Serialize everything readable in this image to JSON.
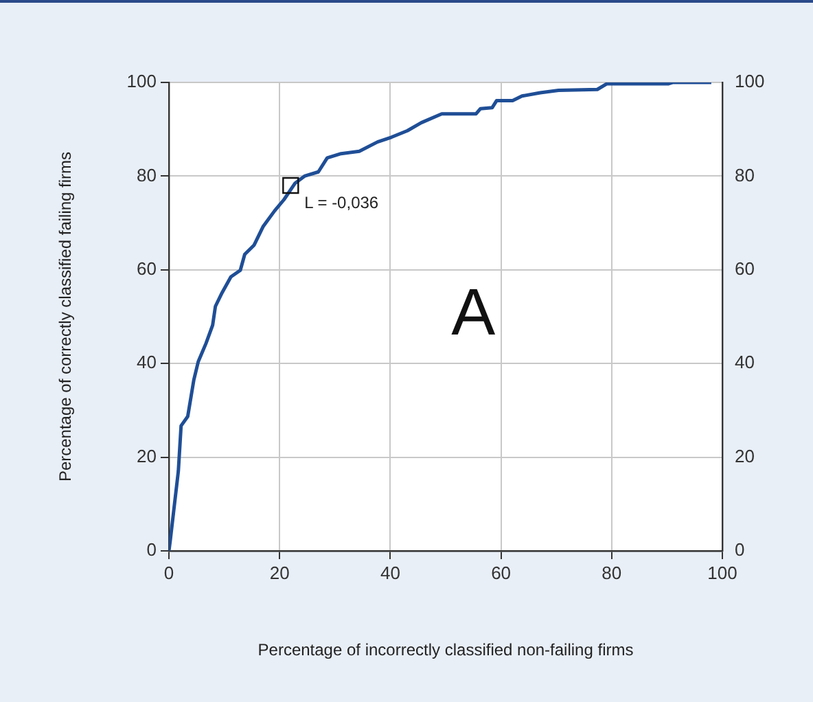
{
  "chart_data": {
    "type": "line",
    "xlabel": "Percentage of incorrectly classified non-failing firms",
    "ylabel": "Percentage of correctly classified failing firms",
    "x": [
      0,
      0.25,
      1.7,
      2.2,
      3.4,
      4.5,
      5.3,
      6.7,
      7.9,
      8.4,
      9.6,
      11.2,
      12.9,
      13.7,
      15.4,
      17,
      19.1,
      20.8,
      22.8,
      24.5,
      27,
      28.6,
      31.1,
      34.4,
      37.7,
      40.2,
      43.1,
      45.6,
      49.3,
      55.5,
      56.3,
      58.4,
      59.2,
      62.1,
      63.8,
      67.1,
      70.4,
      77.4,
      79.1,
      90.2,
      91,
      98
    ],
    "series": [
      {
        "color": "#1f4e96",
        "values": [
          0,
          2.3,
          17,
          26.7,
          28.7,
          36.5,
          40.4,
          44.3,
          48.2,
          52.2,
          55.1,
          58.5,
          59.9,
          63.3,
          65.3,
          69.2,
          72.6,
          75,
          78.5,
          80,
          80.9,
          83.9,
          84.8,
          85.3,
          87.3,
          88.3,
          89.7,
          91.4,
          93.3,
          93.3,
          94.4,
          94.6,
          96.1,
          96.1,
          97.1,
          97.8,
          98.3,
          98.5,
          99.7,
          99.7,
          100,
          100
        ]
      }
    ],
    "xlim": [
      0,
      100
    ],
    "xticks": [
      0,
      20,
      40,
      60,
      80,
      100
    ],
    "ylim": [
      0,
      100
    ],
    "yticks": [
      0,
      20,
      40,
      60,
      80,
      100
    ],
    "y2lim": [
      0,
      100
    ],
    "y2ticks": [
      0,
      20,
      40,
      60,
      80,
      100
    ],
    "grid": true,
    "marker": "none",
    "line_style": "solid",
    "annotations": [
      {
        "text": "L = -0,036",
        "x": 22,
        "y": 78
      },
      "A"
    ]
  }
}
